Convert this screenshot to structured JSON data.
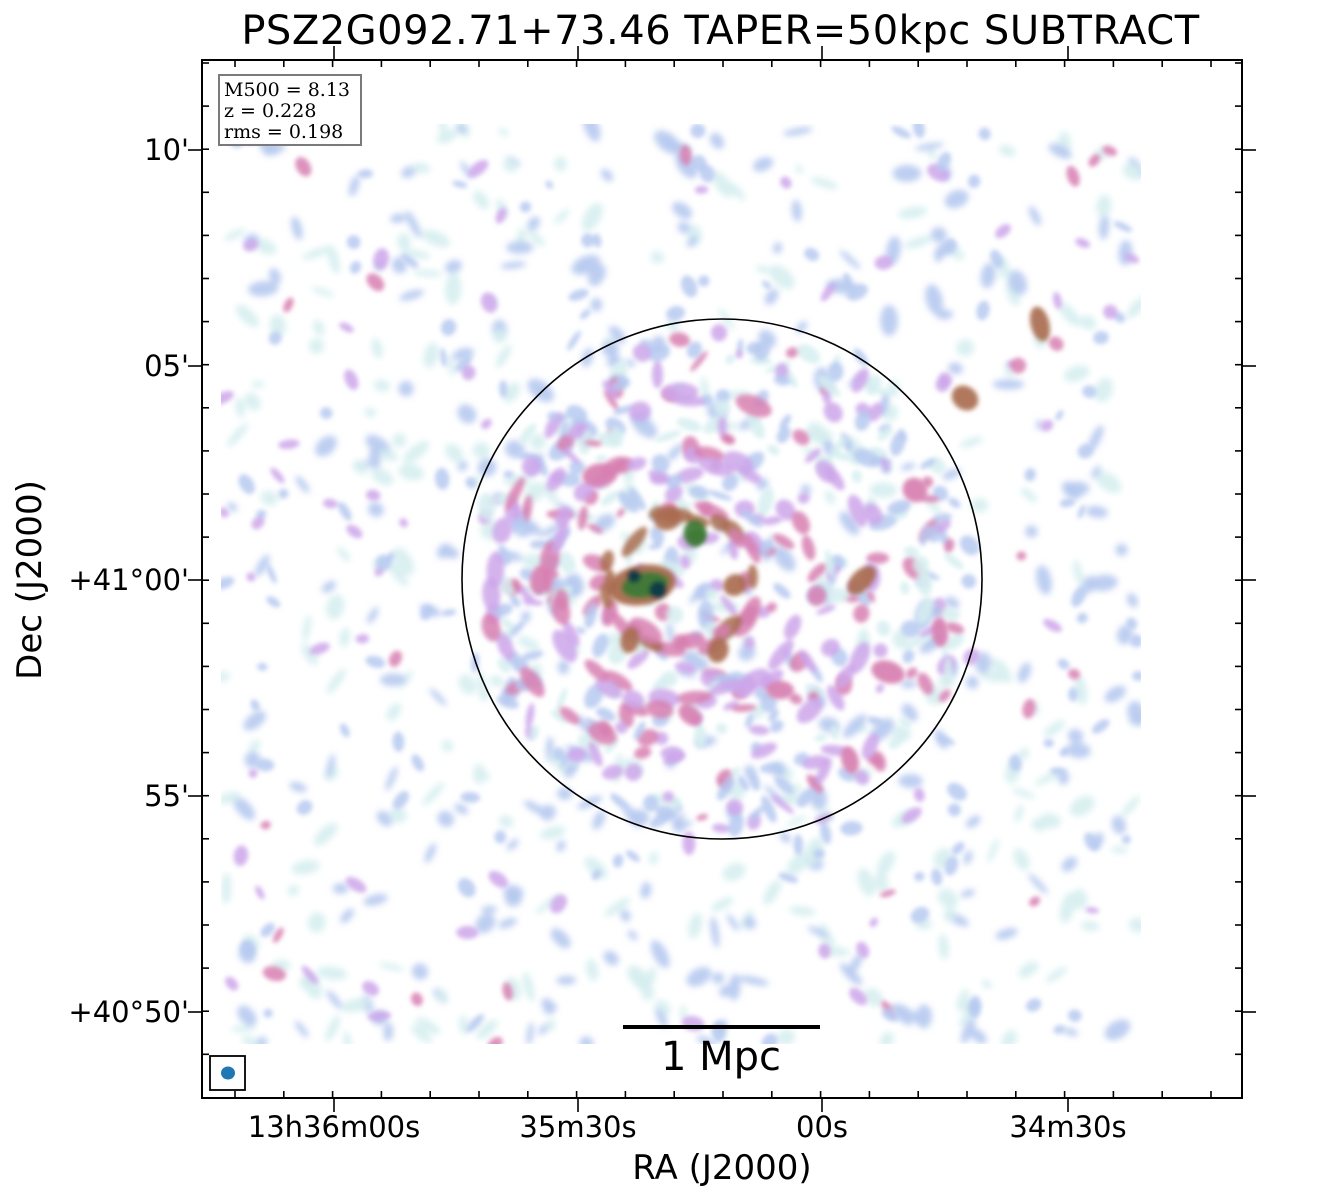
{
  "title": "PSZ2G092.71+73.46 TAPER=50kpc SUBTRACT",
  "axes": {
    "xlabel": "RA (J2000)",
    "ylabel": "Dec (J2000)",
    "x_ticks": [
      "13h36m00s",
      "35m30s",
      "00s",
      "34m30s"
    ],
    "y_ticks": [
      "10'",
      "05'",
      "+41°00'",
      "55'",
      "+40°50'"
    ]
  },
  "info": {
    "line1": "M500 = 8.13",
    "line2": "z = 0.228",
    "line3": "rms = 0.198"
  },
  "scalebar": {
    "label": "1 Mpc"
  },
  "colors": {
    "frame": "#000000",
    "beam": "#1f77b4",
    "colormap": [
      "#d6eef0",
      "#b6c9f0",
      "#cda6ea",
      "#d77fb0",
      "#a96c50",
      "#3e7a37",
      "#0f3e45"
    ]
  },
  "overlay": {
    "circle": "R500 aperture",
    "beam_marker": "restoring beam"
  }
}
